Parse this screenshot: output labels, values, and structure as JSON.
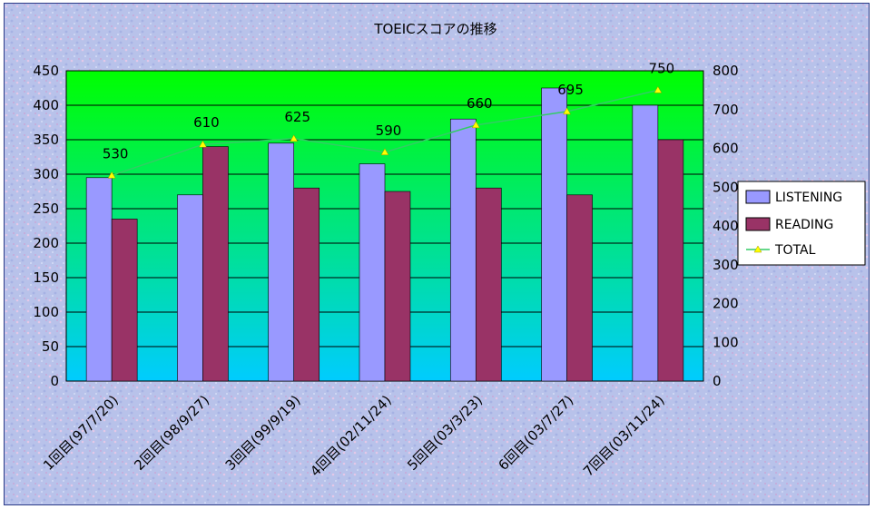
{
  "chart_data": {
    "type": "bar",
    "title": "TOEICスコアの推移",
    "categories": [
      "1回目(97/7/20)",
      "2回目(98/9/27)",
      "3回目(99/9/19)",
      "4回目(02/11/24)",
      "5回目(03/3/23)",
      "6回目(03/7/27)",
      "7回目(03/11/24)"
    ],
    "series": [
      {
        "name": "LISTENING",
        "type": "bar",
        "axis": "left",
        "color": "#9999ff",
        "values": [
          295,
          270,
          345,
          315,
          380,
          425,
          400
        ]
      },
      {
        "name": "READING",
        "type": "bar",
        "axis": "left",
        "color": "#993366",
        "values": [
          235,
          340,
          280,
          275,
          280,
          270,
          350
        ]
      },
      {
        "name": "TOTAL",
        "type": "line",
        "axis": "right",
        "color": "#ffff00",
        "values": [
          530,
          610,
          625,
          590,
          660,
          695,
          750
        ]
      }
    ],
    "data_labels": [
      "530",
      "610",
      "625",
      "590",
      "660",
      "695",
      "750"
    ],
    "y_left": {
      "min": 0,
      "max": 450,
      "step": 50,
      "ticks": [
        "0",
        "50",
        "100",
        "150",
        "200",
        "250",
        "300",
        "350",
        "400",
        "450"
      ]
    },
    "y_right": {
      "min": 0,
      "max": 800,
      "step": 100,
      "ticks": [
        "0",
        "100",
        "200",
        "300",
        "400",
        "500",
        "600",
        "700",
        "800"
      ]
    },
    "grid": true,
    "legend": "right",
    "colors": {
      "plot_top": "#00ff00",
      "plot_bottom": "#00ccff",
      "gridline": "#000000",
      "total_line": "#33cc66",
      "total_marker": "#ffff00"
    }
  }
}
